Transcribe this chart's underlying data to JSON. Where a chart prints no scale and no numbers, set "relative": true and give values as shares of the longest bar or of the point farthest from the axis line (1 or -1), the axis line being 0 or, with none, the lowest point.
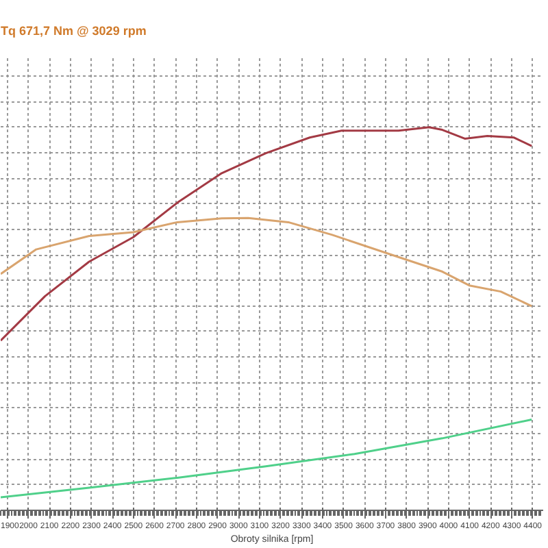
{
  "chart_data": {
    "type": "line",
    "title": "Tq 671,7 Nm @ 3029 rpm",
    "xlabel": "Obroty silnika [rpm]",
    "relative": true,
    "xlim": [
      1868,
      4450
    ],
    "xticks": [
      1900,
      2000,
      2100,
      2200,
      2300,
      2400,
      2500,
      2600,
      2700,
      2800,
      2900,
      3000,
      3100,
      3200,
      3300,
      3400,
      3500,
      3600,
      3700,
      3800,
      3900,
      4000,
      4100,
      4200,
      4300,
      4400
    ],
    "grid": true,
    "line_style": "solid",
    "series": [
      {
        "color": "#a33a44",
        "x": [
          1868,
          2079,
          2289,
          2499,
          2709,
          2920,
          3130,
          3339,
          3490,
          3761,
          3907,
          3970,
          4077,
          4184,
          4311,
          4395
        ],
        "values": [
          0.443,
          0.559,
          0.649,
          0.713,
          0.803,
          0.88,
          0.932,
          0.973,
          0.991,
          0.991,
          1.0,
          0.993,
          0.97,
          0.977,
          0.973,
          0.951
        ]
      },
      {
        "color": "#d9a46e",
        "x": [
          1868,
          2037,
          2289,
          2499,
          2709,
          2920,
          3046,
          3237,
          3446,
          3761,
          3970,
          4098,
          4248,
          4395
        ],
        "values": [
          0.617,
          0.681,
          0.716,
          0.726,
          0.752,
          0.762,
          0.763,
          0.752,
          0.719,
          0.661,
          0.623,
          0.587,
          0.571,
          0.533
        ]
      },
      {
        "color": "#4fd08a",
        "x": [
          1868,
          2289,
          2709,
          3130,
          3552,
          3970,
          4395
        ],
        "values": [
          0.034,
          0.059,
          0.085,
          0.115,
          0.147,
          0.188,
          0.237
        ]
      }
    ]
  }
}
